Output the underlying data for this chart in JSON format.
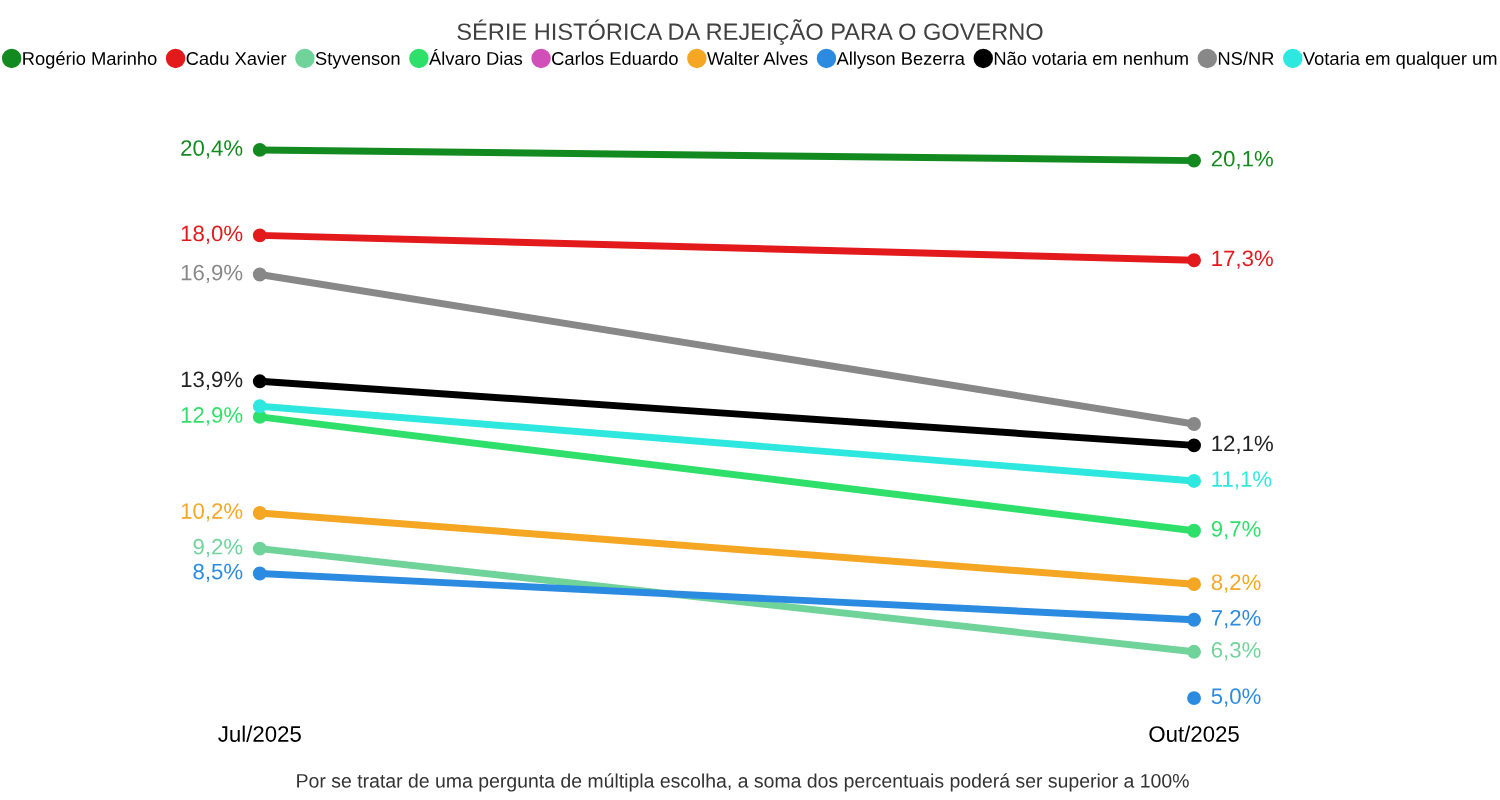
{
  "chart_data": {
    "type": "line",
    "title": "SÉRIE HISTÓRICA DA REJEIÇÃO PARA O GOVERNO",
    "categories": [
      "Jul/2025",
      "Out/2025"
    ],
    "tick_labels": "x",
    "grid": false,
    "legend": "top",
    "marker": "circle",
    "line_style": "solid",
    "series": [
      {
        "name": "Rogério Marinho",
        "color": "#138a1f",
        "values": [
          20.4,
          20.1
        ],
        "value_labels": [
          "20,4%",
          "20,1%"
        ]
      },
      {
        "name": "Cadu Xavier",
        "color": "#e31a1c",
        "values": [
          18.0,
          17.3
        ],
        "value_labels": [
          "18,0%",
          "17,3%"
        ]
      },
      {
        "name": "Styvenson",
        "color": "#6fd39a",
        "values": [
          9.2,
          6.3
        ],
        "value_labels": [
          "9,2%",
          "6,3%"
        ]
      },
      {
        "name": "Álvaro Dias",
        "color": "#2ee06a",
        "values": [
          12.9,
          9.7
        ],
        "value_labels": [
          "12,9%",
          "9,7%"
        ]
      },
      {
        "name": "Carlos Eduardo",
        "color": "#d14fb8",
        "values": [
          null,
          null
        ],
        "value_labels": [
          null,
          null
        ]
      },
      {
        "name": "Walter Alves",
        "color": "#f5a623",
        "values": [
          10.2,
          8.2
        ],
        "value_labels": [
          "10,2%",
          "8,2%"
        ]
      },
      {
        "name": "Allyson Bezerra",
        "color": "#2b8be0",
        "values": [
          8.5,
          7.2
        ],
        "value_labels": [
          "8,5%",
          "7,2%"
        ]
      },
      {
        "name": "Não votaria em nenhum",
        "color": "#000000",
        "values": [
          13.9,
          12.1
        ],
        "value_labels": [
          "13,9%",
          "12,1%"
        ]
      },
      {
        "name": "NS/NR",
        "color": "#888888",
        "values": [
          16.9,
          12.7
        ],
        "value_labels": [
          "16,9%",
          null
        ]
      },
      {
        "name": "Votaria em qualquer um",
        "color": "#2ee8e0",
        "values": [
          13.2,
          11.1
        ],
        "value_labels": [
          null,
          "11,1%"
        ]
      },
      {
        "color": "#2b8be0",
        "values": [
          null,
          5.0
        ],
        "value_labels": [
          null,
          "5,0%"
        ]
      }
    ],
    "annotations": [
      "Por se tratar de uma pergunta de múltipla escolha, a soma dos percentuais poderá ser superior a 100%"
    ]
  }
}
